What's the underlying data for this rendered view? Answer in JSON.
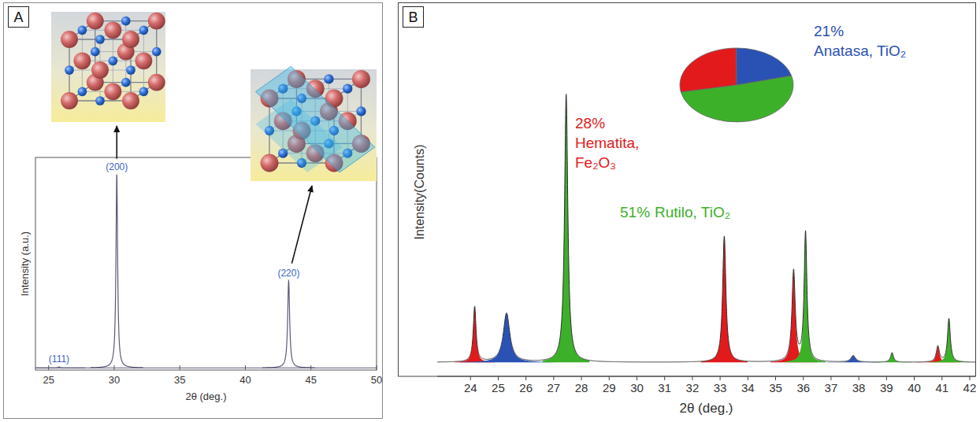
{
  "chart_data": [
    {
      "panel": "A",
      "type": "xrd",
      "x_label": "2θ (deg.)",
      "y_label": "Intensity (a.u.)",
      "xlim": [
        24,
        50
      ],
      "ylim": [
        0,
        100
      ],
      "xticks": [
        25,
        30,
        35,
        40,
        45,
        50
      ],
      "tick_labels": "x",
      "color": "#5a5a78",
      "background": 1,
      "peaks": [
        {
          "label": "(111)",
          "position": 25.8,
          "intensity": 1.5,
          "fwhm": 0.12
        },
        {
          "label": "(200)",
          "position": 30.2,
          "intensity": 92,
          "fwhm": 0.15
        },
        {
          "label": "(220)",
          "position": 43.3,
          "intensity": 42,
          "fwhm": 0.18
        }
      ]
    },
    {
      "panel": "B",
      "type": "xrd",
      "x_label": "2θ (deg.)",
      "y_label": "Intensity(Counts)",
      "xlim": [
        22.8,
        42.2
      ],
      "ylim": [
        0,
        100
      ],
      "xticks": [
        24,
        25,
        26,
        27,
        28,
        29,
        30,
        31,
        32,
        33,
        34,
        35,
        36,
        37,
        38,
        39,
        40,
        41,
        42
      ],
      "tick_labels": "x",
      "background": 3.8,
      "series": [
        {
          "name": "Hematita, Fe₂O₃",
          "color": "#e31a1c",
          "peaks": [
            {
              "position": 24.15,
              "intensity": 18.8,
              "fwhm": 0.12
            },
            {
              "position": 33.15,
              "intensity": 38.0,
              "fwhm": 0.14
            },
            {
              "position": 35.65,
              "intensity": 28.4,
              "fwhm": 0.14
            },
            {
              "position": 40.85,
              "intensity": 8.1,
              "fwhm": 0.13
            }
          ]
        },
        {
          "name": "Anatasa, TiO₂",
          "color": "#2a52b4",
          "peaks": [
            {
              "position": 25.3,
              "intensity": 17.1,
              "fwhm": 0.28
            },
            {
              "position": 37.8,
              "intensity": 5.6,
              "fwhm": 0.2
            }
          ]
        },
        {
          "name": "Rutilo, TiO₂",
          "color": "#3db02a",
          "peaks": [
            {
              "position": 27.45,
              "intensity": 76.5,
              "fwhm": 0.14
            },
            {
              "position": 36.08,
              "intensity": 38.9,
              "fwhm": 0.12
            },
            {
              "position": 39.2,
              "intensity": 6.4,
              "fwhm": 0.12
            },
            {
              "position": 41.25,
              "intensity": 15.6,
              "fwhm": 0.12
            }
          ]
        }
      ],
      "pie": {
        "type": "pie",
        "values": [
          28,
          21,
          51
        ],
        "value_labels": [
          "28%",
          "21%",
          "51%"
        ]
      }
    }
  ]
}
